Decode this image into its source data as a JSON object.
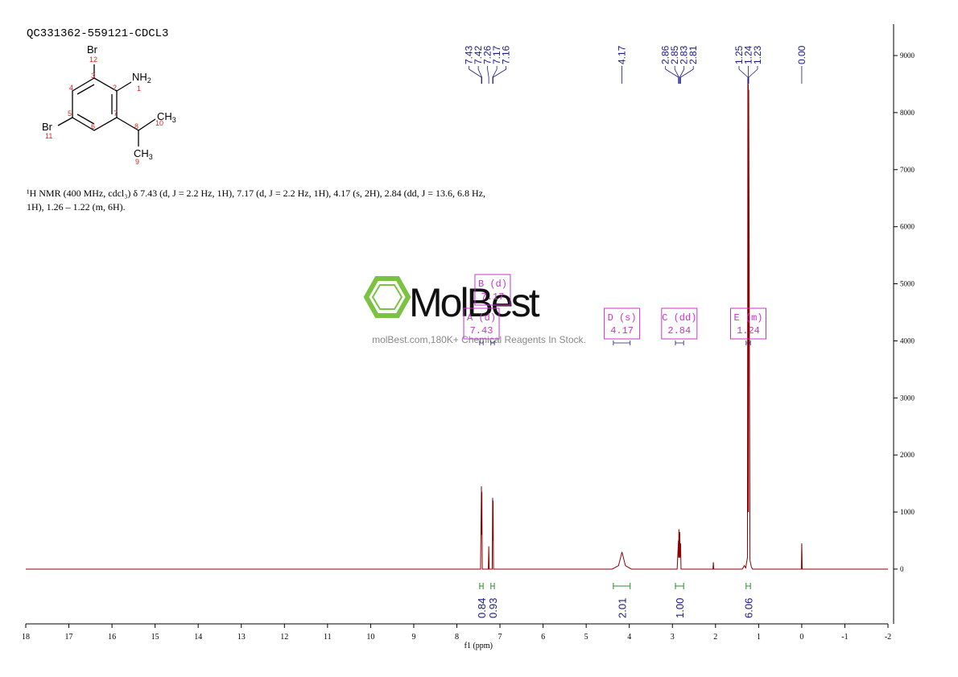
{
  "sample_id": "QC331362-559121-CDCL3",
  "description": "¹H NMR (400 MHz, cdcl₃) δ 7.43 (d, J = 2.2 Hz, 1H), 7.17 (d, J = 2.2 Hz, 1H), 4.17 (s, 2H), 2.84 (dd, J = 13.6, 6.8 Hz, 1H), 1.26 – 1.22 (m, 6H).",
  "structure": {
    "atoms": [
      "Br",
      "NH",
      "CH",
      "Br",
      "CH"
    ],
    "subscripts": [
      "2",
      "3",
      "3"
    ],
    "numbers": [
      "12",
      "3",
      "2",
      "1",
      "4",
      "5",
      "7",
      "6",
      "8",
      "10",
      "11",
      "9"
    ]
  },
  "watermark": {
    "logo": "MolBest",
    "tagline": "molBest.com,180K+ Chemical Reagents In Stock."
  },
  "chart_data": {
    "type": "nmr",
    "x_label": "f1 (ppm)",
    "xlim": [
      18,
      -2
    ],
    "xticks": [
      18,
      17,
      16,
      15,
      14,
      13,
      12,
      11,
      10,
      9,
      8,
      7,
      6,
      5,
      4,
      3,
      2,
      1,
      0,
      -1,
      -2
    ],
    "ylim": [
      -960,
      9550
    ],
    "yticks": [
      0,
      1000,
      2000,
      3000,
      4000,
      5000,
      6000,
      7000,
      8000,
      9000
    ],
    "series": [
      {
        "color": "#8b0000",
        "x": [
          18,
          7.45,
          7.43,
          7.425,
          7.42,
          7.41,
          7.27,
          7.26,
          7.25,
          7.18,
          7.17,
          7.165,
          7.16,
          7.15,
          4.4,
          4.25,
          4.17,
          4.09,
          3.95,
          2.89,
          2.86,
          2.855,
          2.85,
          2.84,
          2.83,
          2.825,
          2.81,
          2.8,
          2.06,
          2.05,
          2.04,
          1.38,
          1.33,
          1.3,
          1.26,
          1.25,
          1.245,
          1.24,
          1.235,
          1.23,
          1.2,
          1.17,
          1.14,
          0.01,
          0,
          -0.01,
          -2
        ],
        "values": [
          0,
          0,
          1450,
          600,
          1350,
          0,
          0,
          400,
          0,
          0,
          1250,
          500,
          1200,
          0,
          0,
          60,
          300,
          60,
          0,
          0,
          500,
          200,
          700,
          200,
          650,
          200,
          450,
          0,
          0,
          120,
          0,
          0,
          60,
          20,
          200,
          8600,
          1000,
          8500,
          1000,
          8400,
          150,
          40,
          0,
          0,
          450,
          0,
          0
        ]
      }
    ],
    "peak_labels": [
      7.43,
      7.42,
      7.26,
      7.17,
      7.16,
      4.17,
      2.86,
      2.85,
      2.83,
      2.81,
      1.25,
      1.24,
      1.23,
      {
        "value": 0,
        "label": "0.00"
      }
    ],
    "peak_label_color": "#1a1a80",
    "integrals": [
      {
        "range": [
          7.47,
          7.39
        ],
        "value": 0.84
      },
      {
        "range": [
          7.21,
          7.13
        ],
        "value": 0.93
      },
      {
        "range": [
          4.37,
          3.98
        ],
        "value": 2.01
      },
      {
        "range": [
          2.93,
          2.74
        ],
        "value": 1,
        "label": "1.00"
      },
      {
        "range": [
          1.29,
          1.19
        ],
        "value": 6.06
      }
    ],
    "integral_color": "#2e8b2e",
    "multiplets": [
      {
        "name": "A (d)",
        "shift": 7.43,
        "range": [
          7.47,
          7.39
        ]
      },
      {
        "name": "B (d)",
        "shift": 7.17,
        "range": [
          7.21,
          7.13
        ]
      },
      {
        "name": "D (s)",
        "shift": 4.17,
        "range": [
          4.37,
          3.98
        ]
      },
      {
        "name": "C (dd)",
        "shift": 2.84,
        "range": [
          2.93,
          2.74
        ]
      },
      {
        "name": "E (m)",
        "shift": 1.24,
        "range": [
          1.29,
          1.19
        ]
      }
    ],
    "multiplet_color": "#cc33cc"
  }
}
